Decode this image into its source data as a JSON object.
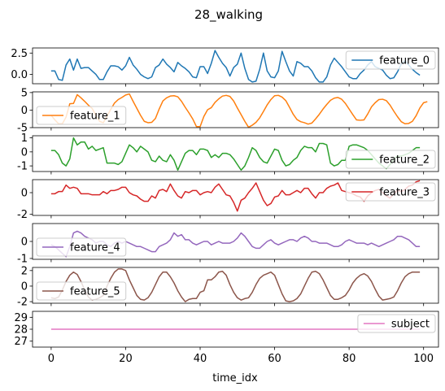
{
  "chart_data": {
    "type": "line",
    "title": "28_walking",
    "xlabel": "time_idx",
    "xlim": [
      -5,
      104
    ],
    "x_ticks": [
      0,
      20,
      40,
      60,
      80,
      100
    ],
    "panels": [
      {
        "name": "feature_0",
        "color": "#1f77b4",
        "ylim": [
          -1.1,
          3.1
        ],
        "y_ticks": [
          0.0,
          2.5
        ],
        "legend": "top-right",
        "values": [
          0.4,
          0.4,
          -0.6,
          -0.7,
          1.1,
          1.8,
          0.5,
          1.8,
          0.7,
          0.8,
          0.8,
          0.4,
          0.0,
          -0.6,
          -0.6,
          0.3,
          1.0,
          1.0,
          0.9,
          0.5,
          1.0,
          2.0,
          1.1,
          0.6,
          0.0,
          -0.3,
          -0.5,
          -0.3,
          0.8,
          1.1,
          1.8,
          1.2,
          0.8,
          0.3,
          1.4,
          1.0,
          0.7,
          0.3,
          -0.3,
          -0.4,
          0.9,
          0.9,
          0.1,
          1.3,
          2.8,
          2.0,
          1.3,
          0.8,
          -0.2,
          0.8,
          1.2,
          2.5,
          0.7,
          -0.6,
          -0.9,
          -0.8,
          0.6,
          2.5,
          0.4,
          -0.3,
          -0.4,
          0.4,
          2.7,
          1.5,
          0.4,
          -0.2,
          1.5,
          1.3,
          0.9,
          0.9,
          0.4,
          -0.4,
          -0.9,
          -0.9,
          -0.3,
          1.1,
          1.9,
          1.4,
          0.9,
          0.3,
          -0.3,
          -0.5,
          -0.5,
          0.1,
          0.5,
          1.1,
          1.5,
          0.9,
          0.7,
          0.5,
          -0.1,
          -0.5,
          -0.4,
          0.3,
          1.2,
          1.6,
          1.1,
          0.6,
          0.2,
          -0.1
        ]
      },
      {
        "name": "feature_1",
        "color": "#ff7f0e",
        "ylim": [
          -5,
          5.2
        ],
        "y_ticks": [
          -5,
          0,
          5
        ],
        "legend": "bottom-left",
        "values": [
          -1.5,
          -2.8,
          -3.9,
          -3.9,
          -2.0,
          1.8,
          1.9,
          4.4,
          3.5,
          2.5,
          1.4,
          0.5,
          -1.5,
          -3.2,
          -3.6,
          -1.7,
          0.2,
          2.0,
          3.0,
          3.6,
          4.3,
          4.6,
          2.5,
          0.5,
          -1.5,
          -3.2,
          -3.6,
          -3.5,
          -2.4,
          0.3,
          2.6,
          3.5,
          4.0,
          4.1,
          3.8,
          2.5,
          0.8,
          -0.8,
          -2.5,
          -4.7,
          -4.7,
          -1.8,
          0.1,
          0.7,
          2.2,
          3.2,
          4.0,
          4.2,
          3.9,
          2.6,
          0.6,
          -1.3,
          -3.2,
          -4.9,
          -4.3,
          -3.5,
          -2.2,
          -0.4,
          1.5,
          3.0,
          4.1,
          4.2,
          3.7,
          2.7,
          0.8,
          -1.2,
          -2.7,
          -3.3,
          -3.6,
          -4.0,
          -3.7,
          -2.5,
          -1.2,
          0.3,
          1.6,
          2.8,
          3.4,
          3.6,
          3.1,
          1.9,
          0.3,
          -1.3,
          -2.8,
          -2.9,
          -2.8,
          -1.1,
          0.9,
          2.1,
          3.0,
          3.1,
          2.7,
          1.4,
          -0.3,
          -1.9,
          -3.3,
          -3.9,
          -3.8,
          -3.2,
          -1.6,
          0.6,
          2.1,
          2.4
        ]
      },
      {
        "name": "feature_2",
        "color": "#2ca02c",
        "ylim": [
          -1.4,
          1.15
        ],
        "y_ticks": [
          -1,
          0,
          1
        ],
        "legend": "bottom-right",
        "values": [
          0.1,
          0.1,
          -0.2,
          -0.8,
          -1.0,
          -0.5,
          1.0,
          0.5,
          0.7,
          0.7,
          0.2,
          0.4,
          0.1,
          0.2,
          0.3,
          -0.8,
          -0.8,
          -0.8,
          -0.9,
          -0.7,
          -0.1,
          0.5,
          0.3,
          0.0,
          0.4,
          0.2,
          0.0,
          -0.6,
          -0.7,
          -0.3,
          -0.6,
          -0.7,
          -0.2,
          -0.6,
          -1.3,
          -0.7,
          -0.1,
          0.1,
          0.1,
          -0.2,
          0.2,
          0.2,
          0.1,
          -0.4,
          -0.2,
          -0.4,
          -0.1,
          -0.1,
          -0.2,
          -0.5,
          -0.9,
          -1.3,
          -1.0,
          -0.4,
          0.3,
          0.1,
          -0.4,
          -0.7,
          -0.8,
          -0.3,
          0.2,
          0.1,
          -0.6,
          -1.0,
          -0.9,
          -0.6,
          -0.4,
          0.1,
          0.4,
          0.3,
          0.3,
          0.0,
          0.6,
          0.6,
          0.5,
          -0.8,
          -1.0,
          -0.9,
          -0.6,
          -0.6,
          0.4,
          0.5,
          0.5,
          0.4,
          0.3,
          0.1,
          -0.2,
          -0.5,
          -0.8,
          -1.0,
          -1.2,
          -0.9,
          -0.5,
          -0.3,
          -0.3,
          -0.2,
          -0.1,
          0.1,
          0.3,
          0.3
        ]
      },
      {
        "name": "feature_3",
        "color": "#d62728",
        "ylim": [
          -2.1,
          1.2
        ],
        "y_ticks": [
          -2,
          0
        ],
        "legend": "top-right",
        "values": [
          -0.1,
          -0.1,
          0.1,
          0.1,
          0.7,
          0.4,
          0.5,
          0.4,
          -0.1,
          -0.1,
          -0.1,
          -0.2,
          -0.2,
          -0.2,
          0.1,
          -0.1,
          0.2,
          0.2,
          0.3,
          0.5,
          0.5,
          0.0,
          -0.2,
          -0.3,
          -0.6,
          -0.8,
          -0.8,
          -0.3,
          -0.5,
          0.2,
          0.3,
          0.1,
          0.8,
          0.2,
          -0.3,
          -0.5,
          0.1,
          0.0,
          0.2,
          0.2,
          -0.2,
          0.0,
          0.1,
          0.0,
          0.5,
          0.8,
          0.3,
          -0.2,
          -0.3,
          -0.9,
          -1.7,
          -0.7,
          -0.5,
          0.0,
          0.4,
          0.9,
          0.1,
          -0.7,
          -1.2,
          -1.0,
          -0.4,
          -0.3,
          0.2,
          -0.2,
          -0.2,
          0.0,
          0.2,
          0.0,
          0.4,
          0.4,
          -0.1,
          -0.5,
          0.0,
          0.0,
          0.4,
          0.6,
          0.7,
          0.9,
          0.2,
          0.1,
          0.0,
          -0.1,
          -0.3,
          -0.4,
          -0.8,
          -0.3,
          0.0,
          0.2,
          0.3,
          0.0,
          -0.3,
          -0.5,
          -0.1,
          0.2,
          0.1,
          0.3,
          0.6,
          0.7,
          1.0,
          1.1
        ]
      },
      {
        "name": "feature_4",
        "color": "#9467bd",
        "ylim": [
          -1.05,
          1.05
        ],
        "y_ticks": [
          -1,
          0
        ],
        "legend": "bottom-left",
        "values": [
          -0.2,
          -0.3,
          -0.5,
          -0.7,
          -0.9,
          -0.3,
          0.5,
          0.6,
          0.5,
          0.3,
          0.2,
          0.1,
          -0.1,
          0.0,
          0.0,
          -0.2,
          -0.3,
          -0.1,
          0.0,
          -0.1,
          0.0,
          -0.1,
          -0.2,
          -0.3,
          -0.3,
          -0.4,
          -0.5,
          -0.6,
          -0.6,
          -0.3,
          -0.2,
          -0.1,
          0.1,
          0.5,
          0.3,
          0.4,
          0.1,
          0.1,
          -0.1,
          -0.2,
          -0.1,
          0.0,
          0.0,
          -0.2,
          -0.1,
          0.0,
          -0.1,
          -0.1,
          -0.1,
          0.0,
          0.2,
          0.5,
          0.3,
          0.0,
          -0.3,
          -0.4,
          -0.4,
          -0.2,
          0.0,
          0.1,
          -0.1,
          -0.2,
          -0.1,
          0.0,
          0.1,
          0.1,
          0.0,
          0.2,
          0.3,
          0.2,
          0.0,
          0.0,
          -0.1,
          -0.1,
          -0.1,
          -0.2,
          -0.3,
          -0.3,
          -0.2,
          0.0,
          0.1,
          0.0,
          -0.1,
          -0.1,
          -0.1,
          -0.2,
          -0.1,
          -0.2,
          -0.3,
          -0.2,
          -0.1,
          0.0,
          0.1,
          0.3,
          0.3,
          0.2,
          0.1,
          -0.1,
          -0.3,
          -0.3
        ]
      },
      {
        "name": "feature_5",
        "color": "#8c564b",
        "ylim": [
          -2.2,
          2.4
        ],
        "y_ticks": [
          -2,
          0,
          2
        ],
        "legend": "bottom-left",
        "values": [
          -1.5,
          -1.6,
          -1.4,
          -0.5,
          0.6,
          1.4,
          1.8,
          1.5,
          0.6,
          -0.5,
          -1.4,
          -1.8,
          -1.7,
          -1.5,
          -1.2,
          0.0,
          1.0,
          1.8,
          2.2,
          2.2,
          2.0,
          0.8,
          -0.2,
          -1.2,
          -1.7,
          -1.8,
          -1.5,
          -0.8,
          0.2,
          1.2,
          1.8,
          1.8,
          1.2,
          0.4,
          -0.6,
          -1.4,
          -2.0,
          -1.7,
          -1.6,
          -1.6,
          -0.8,
          -0.6,
          0.8,
          0.8,
          1.2,
          1.8,
          1.9,
          1.4,
          0.2,
          -0.8,
          -1.5,
          -1.8,
          -1.6,
          -1.5,
          -0.8,
          0.2,
          1.0,
          1.4,
          1.6,
          1.8,
          1.4,
          0.2,
          -1.0,
          -1.9,
          -2.0,
          -1.9,
          -1.6,
          -1.0,
          0.0,
          1.0,
          1.8,
          1.9,
          1.6,
          0.8,
          -0.2,
          -1.2,
          -1.7,
          -1.7,
          -1.5,
          -1.2,
          -0.5,
          0.4,
          1.0,
          1.4,
          1.6,
          1.3,
          0.6,
          -0.4,
          -1.3,
          -1.8,
          -1.7,
          -1.6,
          -1.4,
          -0.6,
          0.4,
          1.2,
          1.6,
          1.8,
          1.8,
          1.8
        ]
      },
      {
        "name": "subject",
        "color": "#e377c2",
        "ylim": [
          26.5,
          29.5
        ],
        "y_ticks": [
          27,
          28,
          29
        ],
        "legend": "top-right",
        "values": [
          28,
          28,
          28,
          28,
          28,
          28,
          28,
          28,
          28,
          28,
          28,
          28,
          28,
          28,
          28,
          28,
          28,
          28,
          28,
          28,
          28,
          28,
          28,
          28,
          28,
          28,
          28,
          28,
          28,
          28,
          28,
          28,
          28,
          28,
          28,
          28,
          28,
          28,
          28,
          28,
          28,
          28,
          28,
          28,
          28,
          28,
          28,
          28,
          28,
          28,
          28,
          28,
          28,
          28,
          28,
          28,
          28,
          28,
          28,
          28,
          28,
          28,
          28,
          28,
          28,
          28,
          28,
          28,
          28,
          28,
          28,
          28,
          28,
          28,
          28,
          28,
          28,
          28,
          28,
          28,
          28,
          28,
          28,
          28,
          28,
          28,
          28,
          28,
          28,
          28,
          28,
          28,
          28,
          28,
          28,
          28,
          28,
          28,
          28,
          28
        ]
      }
    ]
  }
}
